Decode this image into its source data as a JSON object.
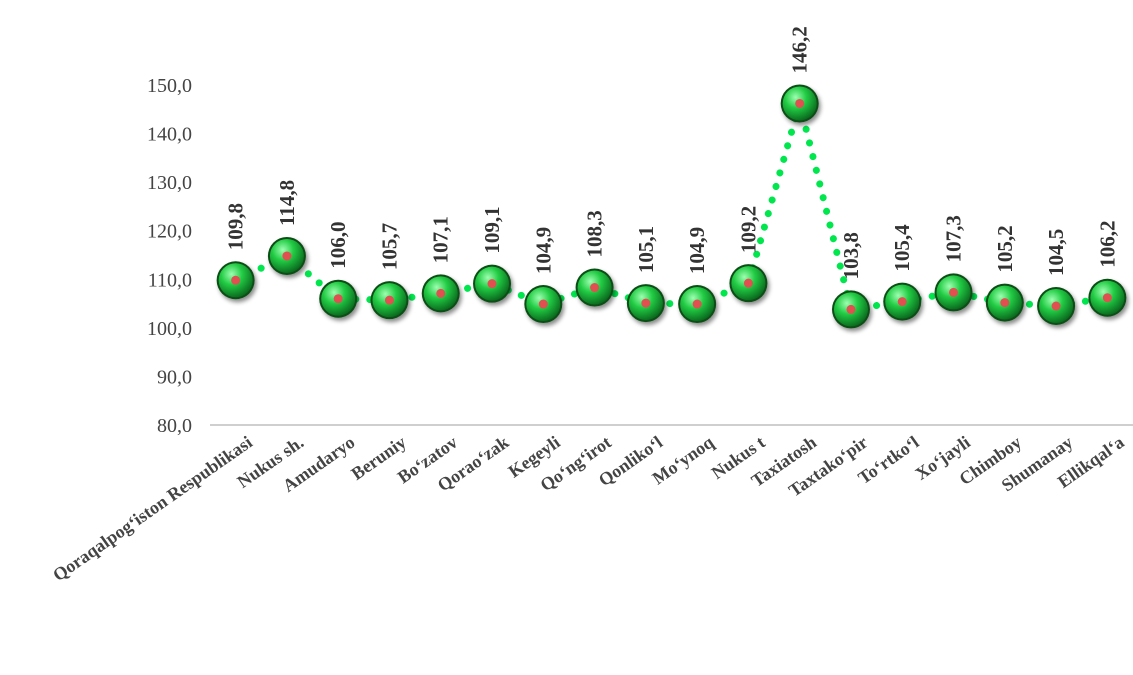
{
  "chart_data": {
    "type": "line",
    "categories": [
      "Qoraqalpog‘iston Respublikasi",
      "Nukus sh.",
      "Amudaryo",
      "Beruniy",
      "Bo‘zatov",
      "Qorao‘zak",
      "Kegeyli",
      "Qo‘ng‘irot",
      "Qonliko‘l",
      "Mo‘ynoq",
      "Nukus t",
      "Taxiatosh",
      "Taxtako‘pir",
      "To‘rtko‘l",
      "Xo‘jayli",
      "Chimboy",
      "Shumanay",
      "Ellikqal‘a"
    ],
    "values": [
      109.8,
      114.8,
      106.0,
      105.7,
      107.1,
      109.1,
      104.9,
      108.3,
      105.1,
      104.9,
      109.2,
      146.2,
      103.8,
      105.4,
      107.3,
      105.2,
      104.5,
      106.2
    ],
    "value_labels": [
      "109,8",
      "114,8",
      "106,0",
      "105,7",
      "107,1",
      "109,1",
      "104,9",
      "108,3",
      "105,1",
      "104,9",
      "109,2",
      "146,2",
      "103,8",
      "105,4",
      "107,3",
      "105,2",
      "104,5",
      "106,2"
    ],
    "yticks": [
      "80,0",
      "90,0",
      "100,0",
      "110,0",
      "120,0",
      "130,0",
      "140,0",
      "150,0"
    ],
    "ylim": [
      80,
      150
    ],
    "title": "",
    "xlabel": "",
    "ylabel": "",
    "grid": false,
    "line_style": "dotted",
    "colors": {
      "line": "#00e64d",
      "marker": "#22cc44",
      "marker_dark": "#0a6b1e",
      "marker_center": "#e05050",
      "axis": "#bfbfbf",
      "text": "#444444"
    }
  }
}
